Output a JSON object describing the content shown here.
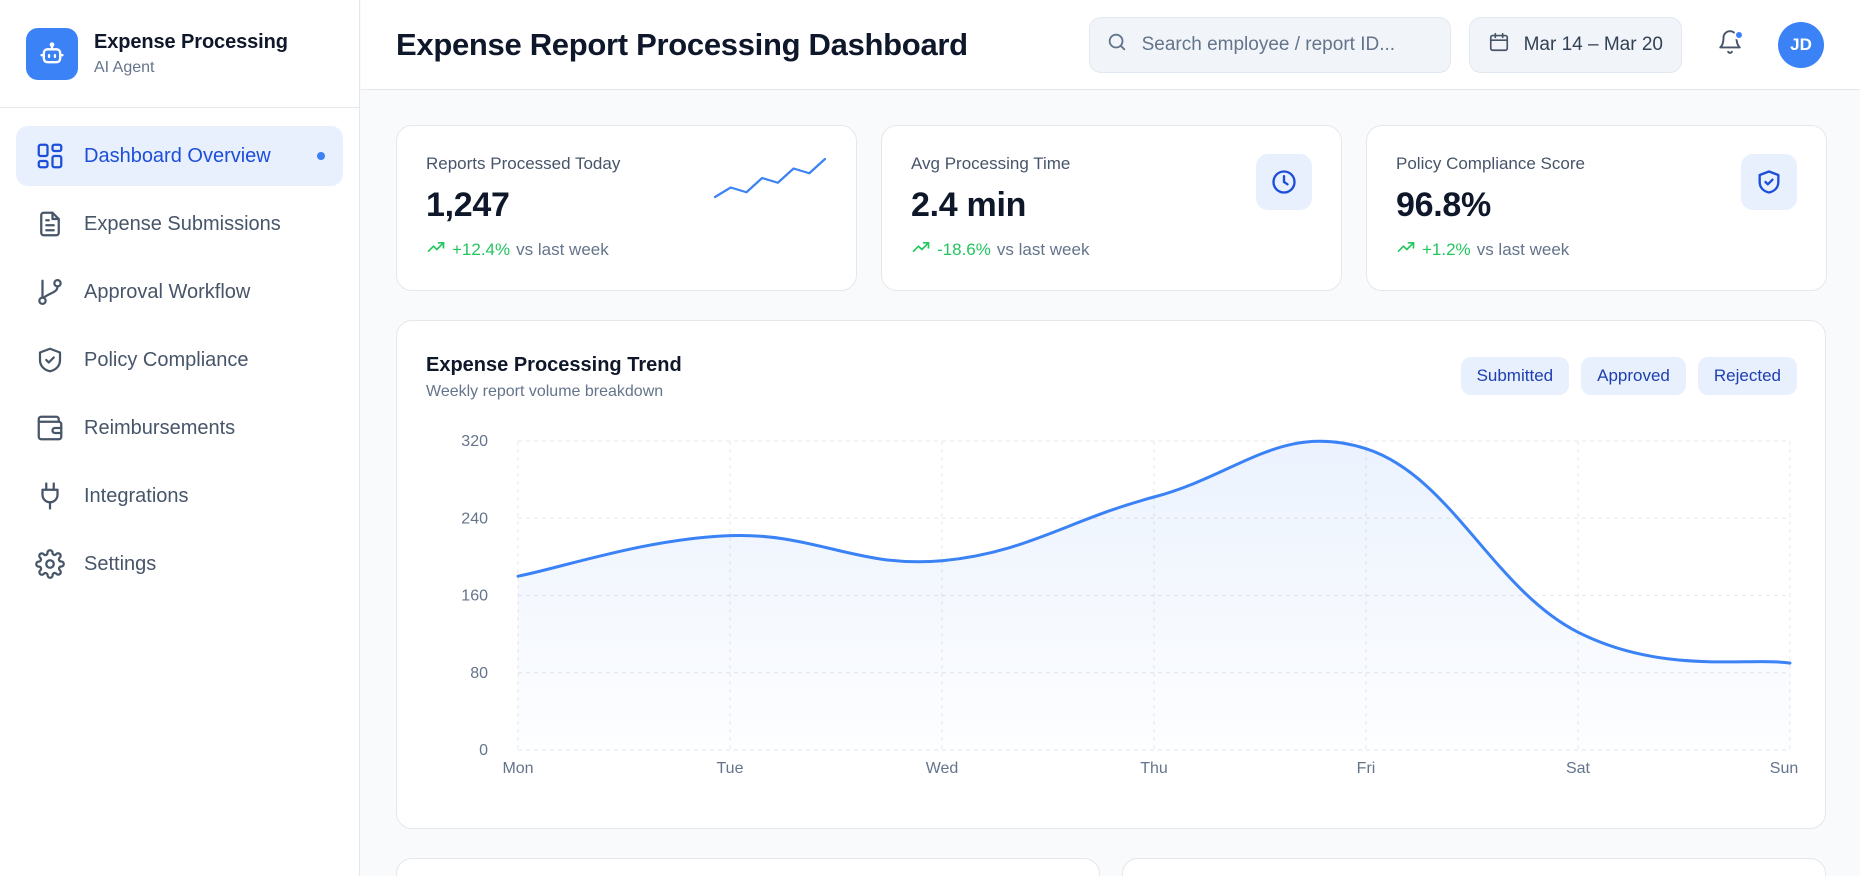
{
  "sidebar": {
    "brand_title": "Expense Processing",
    "brand_subtitle": "AI Agent",
    "items": [
      {
        "label": "Dashboard Overview",
        "icon": "dashboard-icon",
        "active": true
      },
      {
        "label": "Expense Submissions",
        "icon": "document-icon"
      },
      {
        "label": "Approval Workflow",
        "icon": "git-branch-icon"
      },
      {
        "label": "Policy Compliance",
        "icon": "shield-check-icon"
      },
      {
        "label": "Reimbursements",
        "icon": "wallet-icon"
      },
      {
        "label": "Integrations",
        "icon": "plug-icon"
      },
      {
        "label": "Settings",
        "icon": "gear-icon"
      }
    ]
  },
  "header": {
    "title": "Expense Report Processing Dashboard",
    "search_placeholder": "Search employee / report ID...",
    "date_range": "Mar 14 – Mar 20",
    "avatar_initials": "JD"
  },
  "stats": [
    {
      "label": "Reports Processed Today",
      "value": "1,247",
      "delta": "+12.4%",
      "delta_suffix": "vs last week",
      "icon": "sparkline"
    },
    {
      "label": "Avg Processing Time",
      "value": "2.4 min",
      "delta": "-18.6%",
      "delta_suffix": "vs last week",
      "icon": "clock-icon"
    },
    {
      "label": "Policy Compliance Score",
      "value": "96.8%",
      "delta": "+1.2%",
      "delta_suffix": "vs last week",
      "icon": "shield-check-icon"
    }
  ],
  "sparkline_values": [
    2,
    4,
    3,
    6,
    5,
    8,
    7,
    10
  ],
  "chart_card": {
    "title": "Expense Processing Trend",
    "subtitle": "Weekly report volume breakdown",
    "legend": [
      "Submitted",
      "Approved",
      "Rejected"
    ]
  },
  "colors": {
    "accent": "#3b82f6",
    "positive": "#22c55e"
  },
  "chart_data": {
    "type": "area",
    "categories": [
      "Mon",
      "Tue",
      "Wed",
      "Thu",
      "Fri",
      "Sat",
      "Sun"
    ],
    "values": [
      180,
      222,
      196,
      262,
      312,
      122,
      90
    ],
    "ylim": [
      0,
      320
    ],
    "yticks": [
      0,
      80,
      160,
      240,
      320
    ],
    "grid": true
  }
}
